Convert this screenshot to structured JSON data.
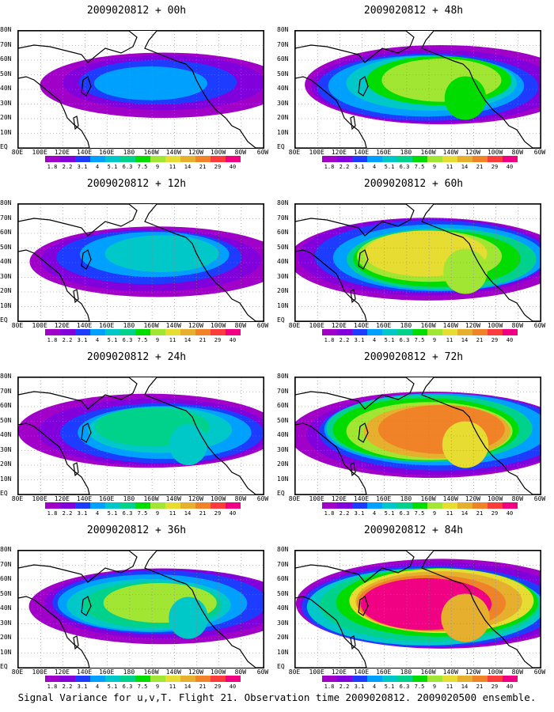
{
  "panels": [
    {
      "title": "2009020812 + 00h",
      "intensity": 0.15
    },
    {
      "title": "2009020812 + 48h",
      "intensity": 0.55
    },
    {
      "title": "2009020812 + 12h",
      "intensity": 0.3
    },
    {
      "title": "2009020812 + 60h",
      "intensity": 0.65
    },
    {
      "title": "2009020812 + 24h",
      "intensity": 0.4
    },
    {
      "title": "2009020812 + 72h",
      "intensity": 0.75
    },
    {
      "title": "2009020812 + 36h",
      "intensity": 0.45
    },
    {
      "title": "2009020812 + 84h",
      "intensity": 0.85
    }
  ],
  "lat_labels": [
    "80N",
    "70N",
    "60N",
    "50N",
    "40N",
    "30N",
    "20N",
    "10N",
    "EQ"
  ],
  "lon_labels": [
    "80E",
    "100E",
    "120E",
    "140E",
    "160E",
    "180",
    "160W",
    "140W",
    "120W",
    "100W",
    "80W",
    "60W"
  ],
  "colorbar": {
    "colors": [
      "#a000c8",
      "#8200dc",
      "#1e3cff",
      "#00a0ff",
      "#00c8c8",
      "#00d28c",
      "#00dc00",
      "#a0e632",
      "#e6dc32",
      "#e6af2d",
      "#f08228",
      "#fa3c3c",
      "#f00082"
    ],
    "labels": [
      "1.8",
      "2.2",
      "3.1",
      "4",
      "5.1",
      "6.3",
      "7.5",
      "9",
      "11",
      "14",
      "21",
      "29",
      "40"
    ]
  },
  "caption": "Signal Variance for u,v,T. Flight 21. Observation time 2009020812. 2009020500 ensemble."
}
